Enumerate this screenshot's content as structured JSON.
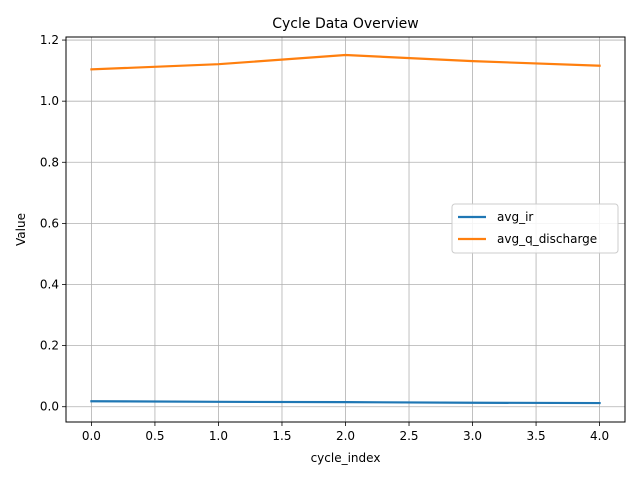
{
  "chart_data": {
    "type": "line",
    "title": "Cycle Data Overview",
    "xlabel": "cycle_index",
    "ylabel": "Value",
    "x": [
      0,
      1,
      2,
      3,
      4
    ],
    "xlim": [
      -0.2,
      4.2
    ],
    "ylim": [
      -0.05,
      1.21
    ],
    "xticks": [
      "0.0",
      "0.5",
      "1.0",
      "1.5",
      "2.0",
      "2.5",
      "3.0",
      "3.5",
      "4.0"
    ],
    "yticks": [
      "0.0",
      "0.2",
      "0.4",
      "0.6",
      "0.8",
      "1.0",
      "1.2"
    ],
    "grid": true,
    "legend_position": "center-right",
    "series": [
      {
        "name": "avg_ir",
        "color": "#1f77b4",
        "values": [
          0.018,
          0.016,
          0.015,
          0.013,
          0.012
        ]
      },
      {
        "name": "avg_q_discharge",
        "color": "#ff7f0e",
        "values": [
          1.104,
          1.121,
          1.151,
          1.131,
          1.116
        ]
      }
    ]
  }
}
